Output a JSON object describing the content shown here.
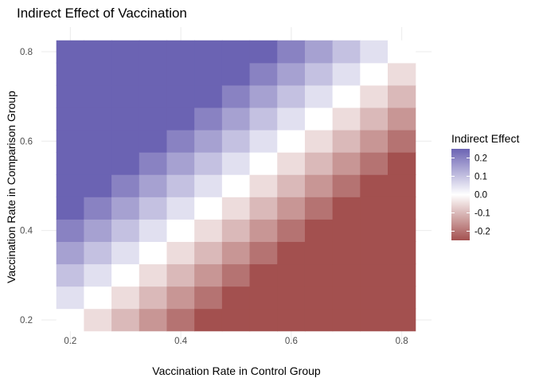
{
  "chart_data": {
    "type": "heatmap",
    "title": "Indirect Effect of Vaccination",
    "xlabel": "Vaccination Rate in Control Group",
    "ylabel": "Vaccination Rate in Comparison Group",
    "xlim": [
      0.175,
      0.825
    ],
    "ylim": [
      0.175,
      0.825
    ],
    "x_ticks": [
      0.2,
      0.4,
      0.6,
      0.8
    ],
    "y_ticks": [
      0.2,
      0.4,
      0.6,
      0.8
    ],
    "x_tick_labels": [
      "0.2",
      "0.4",
      "0.6",
      "0.8"
    ],
    "y_tick_labels": [
      "0.2",
      "0.4",
      "0.6",
      "0.8"
    ],
    "value_formula": "comparison_rate - control_rate",
    "grid_step": 0.05,
    "grid": true,
    "legend": {
      "title": "Indirect Effect",
      "placement": "right",
      "limits": [
        -0.25,
        0.25
      ],
      "ticks": [
        0.2,
        0.1,
        0.0,
        -0.1,
        -0.2
      ],
      "tick_labels": [
        "0.2",
        "0.1",
        "0.0",
        "-0.1",
        "-0.2"
      ]
    },
    "colors": {
      "low": "#a3504f",
      "mid": "#ffffff",
      "high": "#6b63b3"
    }
  }
}
